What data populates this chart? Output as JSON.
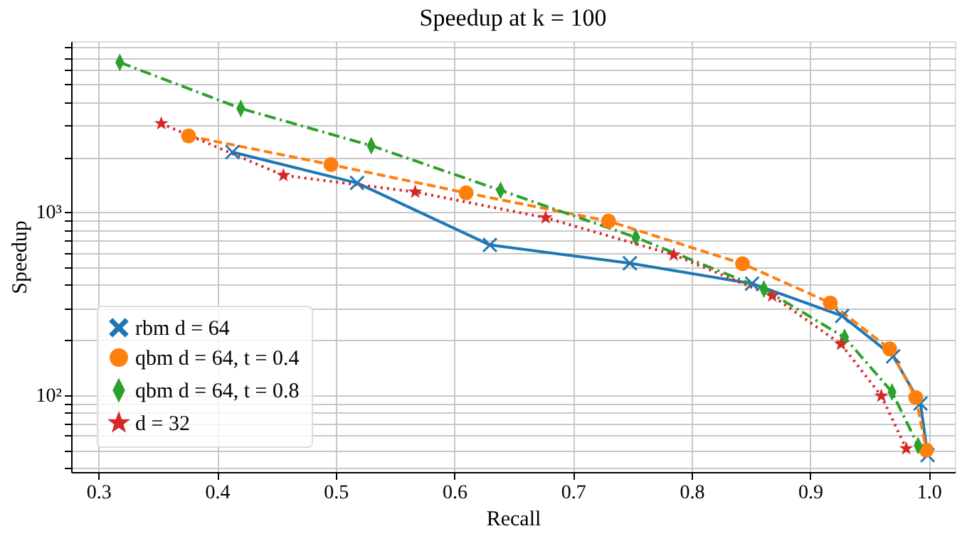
{
  "chart_data": {
    "type": "line",
    "title": "Speedup at k = 100",
    "xlabel": "Recall",
    "ylabel": "Speedup",
    "log": "y",
    "grid": true,
    "legend": "bottom left",
    "xlim": [
      0.277,
      1.022
    ],
    "xticks": [
      0.3,
      0.4,
      0.5,
      0.6,
      0.7,
      0.8,
      0.9,
      {
        "value": 1,
        "label": "1.0"
      }
    ],
    "ylim": [
      38,
      8600
    ],
    "yticks": [
      {
        "value": 40,
        "label": null
      },
      {
        "value": 50,
        "label": null
      },
      {
        "value": 60,
        "label": null
      },
      {
        "value": 70,
        "label": null
      },
      {
        "value": 80,
        "label": null
      },
      {
        "value": 90,
        "label": null
      },
      {
        "value": 100,
        "label": "10²"
      },
      {
        "value": 200,
        "label": null
      },
      {
        "value": 300,
        "label": null
      },
      {
        "value": 400,
        "label": null
      },
      {
        "value": 500,
        "label": null
      },
      {
        "value": 600,
        "label": null
      },
      {
        "value": 700,
        "label": null
      },
      {
        "value": 800,
        "label": null
      },
      {
        "value": 900,
        "label": null
      },
      {
        "value": 1000,
        "label": "10³"
      },
      {
        "value": 2000,
        "label": null
      },
      {
        "value": 3000,
        "label": null
      },
      {
        "value": 4000,
        "label": null
      },
      {
        "value": 5000,
        "label": null
      },
      {
        "value": 6000,
        "label": null
      },
      {
        "value": 7000,
        "label": null
      },
      {
        "value": 8000,
        "label": null
      }
    ],
    "series": [
      {
        "name": "rbm d = 64",
        "color": "#1f77b4",
        "marker": "cross",
        "line_style": "solid",
        "x": [
          0.413,
          0.518,
          0.63,
          0.748,
          0.851,
          0.927,
          0.97,
          0.993,
          0.999
        ],
        "values": [
          2130,
          1445,
          662,
          526,
          407,
          271,
          163,
          90,
          47
        ]
      },
      {
        "name": "qbm d = 64, t = 0.4",
        "color": "#ff7f0e",
        "marker": "circle",
        "line_style": "dashed",
        "x": [
          0.376,
          0.496,
          0.61,
          0.73,
          0.843,
          0.917,
          0.967,
          0.989,
          0.998
        ],
        "values": [
          2610,
          1820,
          1275,
          894,
          523,
          319,
          179,
          97,
          50
        ]
      },
      {
        "name": "qbm d = 64, t = 0.8",
        "color": "#2ca02c",
        "marker": "diamond",
        "line_style": "dashdot",
        "x": [
          0.318,
          0.42,
          0.53,
          0.639,
          0.753,
          0.861,
          0.929,
          0.969,
          0.991
        ],
        "values": [
          6590,
          3690,
          2310,
          1317,
          728,
          380,
          207,
          104,
          53
        ]
      },
      {
        "name": "d = 32",
        "color": "#d62728",
        "marker": "star",
        "line_style": "dotted",
        "x": [
          0.353,
          0.456,
          0.567,
          0.677,
          0.785,
          0.868,
          0.926,
          0.96,
          0.981
        ],
        "values": [
          3050,
          1590,
          1290,
          933,
          585,
          349,
          190,
          99,
          51
        ]
      }
    ]
  }
}
